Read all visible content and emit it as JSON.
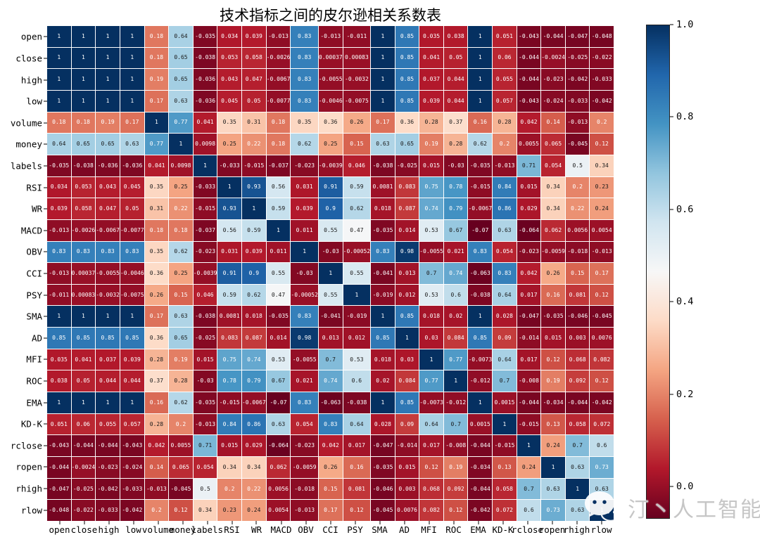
{
  "title": "技术指标之间的皮尔逊相关系数表",
  "watermark": {
    "text": "汀丶人工智能",
    "icon": "wechat-icon"
  },
  "chart_data": {
    "type": "heatmap",
    "title": "技术指标之间的皮尔逊相关系数表",
    "labels": [
      "open",
      "close",
      "high",
      "low",
      "volume",
      "money",
      "labels",
      "RSI",
      "WR",
      "MACD",
      "OBV",
      "CCI",
      "PSY",
      "SMA",
      "AD",
      "MFI",
      "ROC",
      "EMA",
      "KD-K",
      "rclose",
      "ropen",
      "rhigh",
      "rlow"
    ],
    "matrix": [
      [
        1,
        1,
        1,
        1,
        0.18,
        0.64,
        -0.035,
        0.034,
        0.039,
        -0.013,
        0.83,
        -0.013,
        -0.011,
        1,
        0.85,
        0.035,
        0.038,
        1,
        0.051,
        -0.043,
        -0.044,
        -0.047,
        -0.048
      ],
      [
        1,
        1,
        1,
        1,
        0.18,
        0.65,
        -0.038,
        0.053,
        0.058,
        -0.0026,
        0.83,
        0.00037,
        0.00083,
        1,
        0.85,
        0.041,
        0.05,
        1,
        0.06,
        -0.044,
        -0.0024,
        -0.025,
        -0.022
      ],
      [
        1,
        1,
        1,
        1,
        0.19,
        0.65,
        -0.036,
        0.043,
        0.047,
        -0.0067,
        0.83,
        -0.0055,
        -0.0032,
        1,
        0.85,
        0.037,
        0.044,
        1,
        0.055,
        -0.044,
        -0.023,
        -0.042,
        -0.033
      ],
      [
        1,
        1,
        1,
        1,
        0.17,
        0.63,
        -0.036,
        0.045,
        0.05,
        -0.0077,
        0.83,
        -0.0046,
        -0.0075,
        1,
        0.85,
        0.039,
        0.044,
        1,
        0.057,
        -0.043,
        -0.024,
        -0.033,
        -0.042
      ],
      [
        0.18,
        0.18,
        0.19,
        0.17,
        1,
        0.77,
        0.041,
        0.35,
        0.31,
        0.18,
        0.35,
        0.36,
        0.26,
        0.17,
        0.36,
        0.28,
        0.37,
        0.16,
        0.28,
        0.042,
        0.14,
        -0.013,
        0.2
      ],
      [
        0.64,
        0.65,
        0.65,
        0.63,
        0.77,
        1,
        0.0098,
        0.25,
        0.22,
        0.18,
        0.62,
        0.25,
        0.15,
        0.63,
        0.65,
        0.19,
        0.28,
        0.62,
        0.2,
        0.0055,
        0.065,
        -0.045,
        0.12
      ],
      [
        -0.035,
        -0.038,
        -0.036,
        -0.036,
        0.041,
        0.0098,
        1,
        -0.033,
        -0.015,
        -0.037,
        -0.023,
        -0.0039,
        0.046,
        -0.038,
        -0.025,
        0.015,
        -0.03,
        -0.035,
        -0.013,
        0.71,
        0.054,
        0.5,
        0.34
      ],
      [
        0.034,
        0.053,
        0.043,
        0.045,
        0.35,
        0.25,
        -0.033,
        1,
        0.93,
        0.56,
        0.031,
        0.91,
        0.59,
        0.0081,
        0.083,
        0.75,
        0.78,
        -0.015,
        0.84,
        0.015,
        0.34,
        0.2,
        0.23
      ],
      [
        0.039,
        0.058,
        0.047,
        0.05,
        0.31,
        0.22,
        -0.015,
        0.93,
        1,
        0.59,
        0.039,
        0.9,
        0.62,
        0.018,
        0.087,
        0.74,
        0.79,
        -0.0067,
        0.86,
        0.029,
        0.34,
        0.22,
        0.24
      ],
      [
        -0.013,
        -0.0026,
        -0.0067,
        -0.0077,
        0.18,
        0.18,
        -0.037,
        0.56,
        0.59,
        1,
        0.011,
        0.55,
        0.47,
        -0.035,
        0.014,
        0.53,
        0.67,
        -0.07,
        0.63,
        -0.064,
        0.062,
        0.0056,
        0.0054
      ],
      [
        0.83,
        0.83,
        0.83,
        0.83,
        0.35,
        0.62,
        -0.023,
        0.031,
        0.039,
        0.011,
        1,
        -0.03,
        -0.00052,
        0.83,
        0.98,
        -0.0055,
        0.021,
        0.83,
        0.054,
        -0.023,
        -0.0059,
        -0.018,
        -0.013
      ],
      [
        -0.013,
        0.00037,
        -0.0055,
        -0.0046,
        0.36,
        0.25,
        -0.0039,
        0.91,
        0.9,
        0.55,
        -0.03,
        1,
        0.55,
        -0.041,
        0.013,
        0.7,
        0.74,
        -0.063,
        0.83,
        0.042,
        0.26,
        0.15,
        0.17
      ],
      [
        -0.011,
        0.00083,
        -0.0032,
        -0.0075,
        0.26,
        0.15,
        0.046,
        0.59,
        0.62,
        0.47,
        -0.00052,
        0.55,
        1,
        -0.019,
        0.012,
        0.53,
        0.6,
        -0.038,
        0.64,
        0.017,
        0.16,
        0.081,
        0.12
      ],
      [
        1,
        1,
        1,
        1,
        0.17,
        0.63,
        -0.038,
        0.0081,
        0.018,
        -0.035,
        0.83,
        -0.041,
        -0.019,
        1,
        0.85,
        0.018,
        0.02,
        1,
        0.028,
        -0.047,
        -0.035,
        -0.046,
        -0.045
      ],
      [
        0.85,
        0.85,
        0.85,
        0.85,
        0.36,
        0.65,
        -0.025,
        0.083,
        0.087,
        0.014,
        0.98,
        0.013,
        0.012,
        0.85,
        1,
        0.03,
        0.084,
        0.85,
        0.09,
        -0.014,
        0.015,
        0.003,
        0.0076
      ],
      [
        0.035,
        0.041,
        0.037,
        0.039,
        0.28,
        0.19,
        0.015,
        0.75,
        0.74,
        0.53,
        -0.0055,
        0.7,
        0.53,
        0.018,
        0.03,
        1,
        0.77,
        -0.0073,
        0.64,
        0.017,
        0.12,
        0.068,
        0.082
      ],
      [
        0.038,
        0.05,
        0.044,
        0.044,
        0.37,
        0.28,
        -0.03,
        0.78,
        0.79,
        0.67,
        0.021,
        0.74,
        0.6,
        0.02,
        0.084,
        0.77,
        1,
        -0.012,
        0.7,
        -0.008,
        0.19,
        0.092,
        0.12
      ],
      [
        1,
        1,
        1,
        1,
        0.16,
        0.62,
        -0.035,
        -0.015,
        -0.0067,
        -0.07,
        0.83,
        -0.063,
        -0.038,
        1,
        0.85,
        -0.0073,
        -0.012,
        1,
        0.0015,
        -0.044,
        -0.034,
        -0.044,
        -0.042
      ],
      [
        0.051,
        0.06,
        0.055,
        0.057,
        0.28,
        0.2,
        -0.013,
        0.84,
        0.86,
        0.63,
        0.054,
        0.83,
        0.64,
        0.028,
        0.09,
        0.64,
        0.7,
        0.0015,
        1,
        -0.015,
        0.13,
        0.058,
        0.072
      ],
      [
        -0.043,
        -0.044,
        -0.044,
        -0.043,
        0.042,
        0.0055,
        0.71,
        0.015,
        0.029,
        -0.064,
        -0.023,
        0.042,
        0.017,
        -0.047,
        -0.014,
        0.017,
        -0.008,
        -0.044,
        -0.015,
        1,
        0.24,
        0.7,
        0.6
      ],
      [
        -0.044,
        -0.0024,
        -0.023,
        -0.024,
        0.14,
        0.065,
        0.054,
        0.34,
        0.34,
        0.062,
        -0.0059,
        0.26,
        0.16,
        -0.035,
        0.015,
        0.12,
        0.19,
        -0.034,
        0.13,
        0.24,
        1,
        0.63,
        0.73
      ],
      [
        -0.047,
        -0.025,
        -0.042,
        -0.033,
        -0.013,
        -0.045,
        0.5,
        0.2,
        0.22,
        0.0056,
        -0.018,
        0.15,
        0.081,
        -0.046,
        0.003,
        0.068,
        0.092,
        -0.044,
        0.058,
        0.7,
        0.63,
        1,
        0.63
      ],
      [
        -0.048,
        -0.022,
        -0.033,
        -0.042,
        0.2,
        0.12,
        0.34,
        0.23,
        0.24,
        0.0054,
        -0.013,
        0.17,
        0.12,
        -0.045,
        0.0076,
        0.082,
        0.12,
        -0.042,
        0.072,
        0.6,
        0.73,
        0.63,
        1
      ]
    ],
    "colormap": "RdBu",
    "colormap_anchors": [
      "#67001f",
      "#b2182b",
      "#d6604d",
      "#f4a582",
      "#fddbc7",
      "#f7f7f7",
      "#d1e5f0",
      "#92c5de",
      "#4393c3",
      "#2166ac",
      "#053061"
    ],
    "vmin": -0.07,
    "vmax": 1.0,
    "annotation_format": ".2g",
    "grid_line_color": "#ffffff",
    "text_color_dark": "#1a1a1a",
    "text_color_light": "#ffffff",
    "colorbar": {
      "ticks": [
        "1.0",
        "0.8",
        "0.6",
        "0.4",
        "0.2",
        "0.0"
      ],
      "tick_values": [
        1.0,
        0.8,
        0.6,
        0.4,
        0.2,
        0.0
      ],
      "position": "right"
    },
    "legend_position": "right",
    "grid": false
  }
}
